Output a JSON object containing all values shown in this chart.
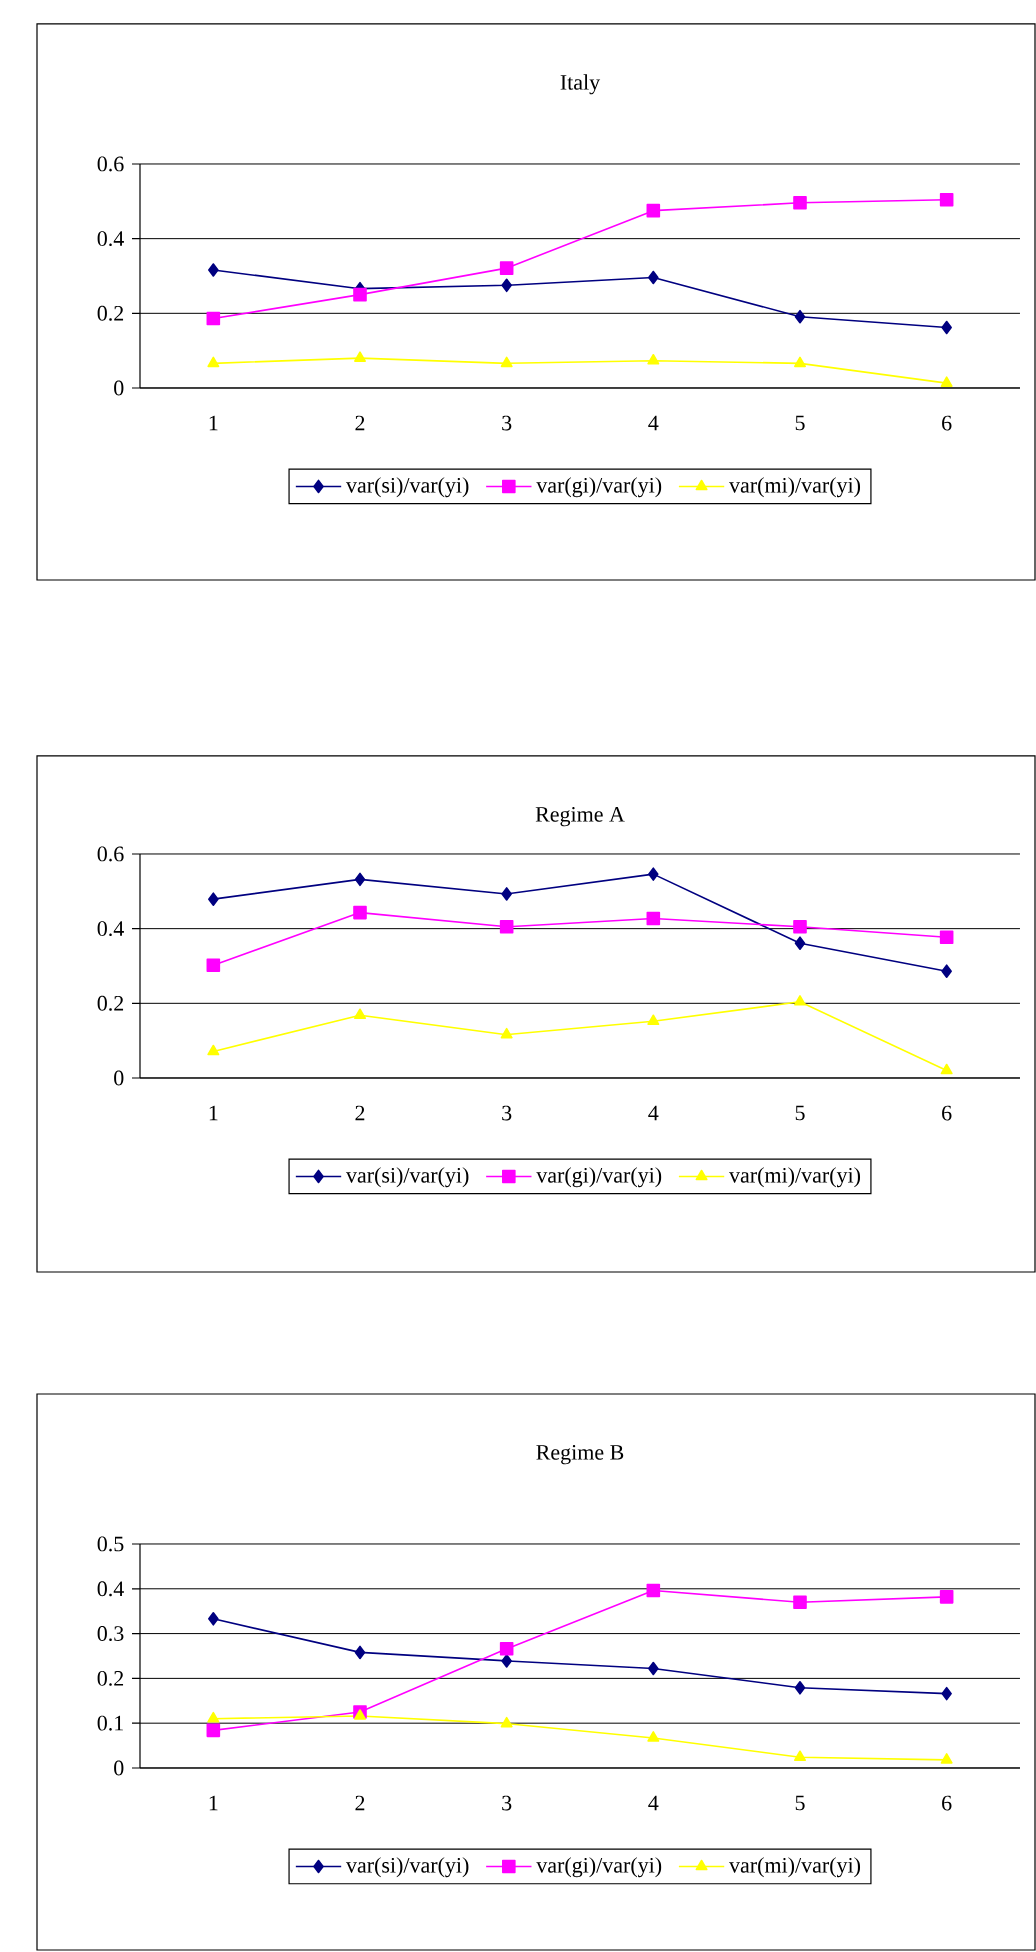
{
  "chart_data": [
    {
      "type": "line",
      "title": "Italy",
      "categories": [
        "1",
        "2",
        "3",
        "4",
        "5",
        "6"
      ],
      "ylim": [
        0,
        0.6
      ],
      "yticks": [
        0,
        0.2,
        0.4,
        0.6
      ],
      "grid": "y",
      "legend": "bottom",
      "line_style": "solid",
      "series": [
        {
          "name": "var(si)/var(yi)",
          "color": "#000080",
          "marker": "diamond",
          "values": [
            0.316,
            0.266,
            0.275,
            0.296,
            0.191,
            0.162
          ]
        },
        {
          "name": "var(gi)/var(yi)",
          "color": "#ff00ff",
          "marker": "square",
          "values": [
            0.186,
            0.25,
            0.321,
            0.475,
            0.496,
            0.504
          ]
        },
        {
          "name": "var(mi)/var(yi)",
          "color": "#ffff00",
          "marker": "triangle",
          "values": [
            0.066,
            0.08,
            0.066,
            0.073,
            0.066,
            0.013
          ]
        }
      ]
    },
    {
      "type": "line",
      "title": "Regime A",
      "categories": [
        "1",
        "2",
        "3",
        "4",
        "5",
        "6"
      ],
      "ylim": [
        0,
        0.6
      ],
      "yticks": [
        0,
        0.2,
        0.4,
        0.6
      ],
      "grid": "y",
      "legend": "bottom",
      "line_style": "solid",
      "series": [
        {
          "name": "var(si)/var(yi)",
          "color": "#000080",
          "marker": "diamond",
          "values": [
            0.479,
            0.532,
            0.493,
            0.546,
            0.361,
            0.286
          ]
        },
        {
          "name": "var(gi)/var(yi)",
          "color": "#ff00ff",
          "marker": "square",
          "values": [
            0.302,
            0.443,
            0.405,
            0.427,
            0.405,
            0.377
          ]
        },
        {
          "name": "var(mi)/var(yi)",
          "color": "#ffff00",
          "marker": "triangle",
          "values": [
            0.071,
            0.168,
            0.116,
            0.152,
            0.204,
            0.02
          ]
        }
      ]
    },
    {
      "type": "line",
      "title": "Regime B",
      "categories": [
        "1",
        "2",
        "3",
        "4",
        "5",
        "6"
      ],
      "ylim": [
        0,
        0.5
      ],
      "yticks": [
        0,
        0.1,
        0.2,
        0.3,
        0.4,
        0.5
      ],
      "grid": "y",
      "legend": "bottom",
      "line_style": "solid",
      "series": [
        {
          "name": "var(si)/var(yi)",
          "color": "#000080",
          "marker": "diamond",
          "values": [
            0.333,
            0.258,
            0.239,
            0.222,
            0.179,
            0.166
          ]
        },
        {
          "name": "var(gi)/var(yi)",
          "color": "#ff00ff",
          "marker": "square",
          "values": [
            0.084,
            0.125,
            0.266,
            0.396,
            0.37,
            0.382
          ]
        },
        {
          "name": "var(mi)/var(yi)",
          "color": "#ffff00",
          "marker": "triangle",
          "values": [
            0.11,
            0.116,
            0.099,
            0.067,
            0.024,
            0.018
          ]
        }
      ]
    }
  ]
}
